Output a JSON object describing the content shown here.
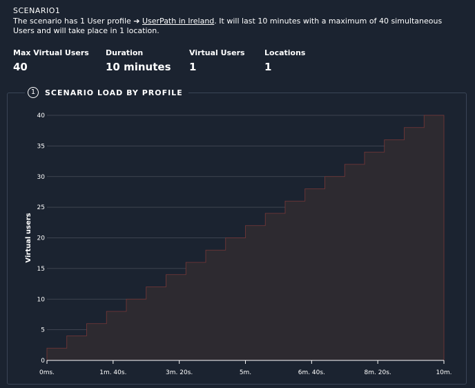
{
  "scenario": {
    "title": "SCENARIO1",
    "desc_before": "The scenario has 1 User profile ➔ ",
    "desc_link": "UserPath in Ireland",
    "desc_after": ". It will last 10 minutes with a maximum of 40 simultaneous Users and will take place in 1 location."
  },
  "stats": [
    {
      "label": "Max Virtual Users",
      "value": "40"
    },
    {
      "label": "Duration",
      "value": "10 minutes"
    },
    {
      "label": "Virtual Users",
      "value": "1"
    },
    {
      "label": "Locations",
      "value": "1"
    }
  ],
  "panel": {
    "legend_number": "1",
    "legend_title": "SCENARIO LOAD BY PROFILE"
  },
  "colors": {
    "background": "#1b2330",
    "area_fill": "#2d2a30",
    "area_stroke": "#7a3838",
    "grid": "#4a4f5a",
    "axis": "#ffffff"
  },
  "chart_data": {
    "type": "area",
    "step": true,
    "ylabel": "Virtual users",
    "xlabel": "",
    "ylim": [
      0,
      40
    ],
    "yticks": [
      0,
      5,
      10,
      15,
      20,
      25,
      30,
      35,
      40
    ],
    "xlim": [
      0,
      600
    ],
    "xticks": [
      {
        "value": 0,
        "label": "0ms."
      },
      {
        "value": 100,
        "label": "1m. 40s."
      },
      {
        "value": 200,
        "label": "3m. 20s."
      },
      {
        "value": 300,
        "label": "5m."
      },
      {
        "value": 400,
        "label": "6m. 40s."
      },
      {
        "value": 500,
        "label": "8m. 20s."
      },
      {
        "value": 600,
        "label": "10m."
      }
    ],
    "series": [
      {
        "x": [
          0,
          30,
          60,
          90,
          120,
          150,
          180,
          210,
          240,
          270,
          300,
          330,
          360,
          390,
          420,
          450,
          480,
          510,
          540,
          570,
          600
        ],
        "y": [
          2,
          4,
          6,
          8,
          10,
          12,
          14,
          16,
          18,
          20,
          22,
          24,
          26,
          28,
          30,
          32,
          34,
          36,
          38,
          40,
          40
        ]
      }
    ]
  }
}
